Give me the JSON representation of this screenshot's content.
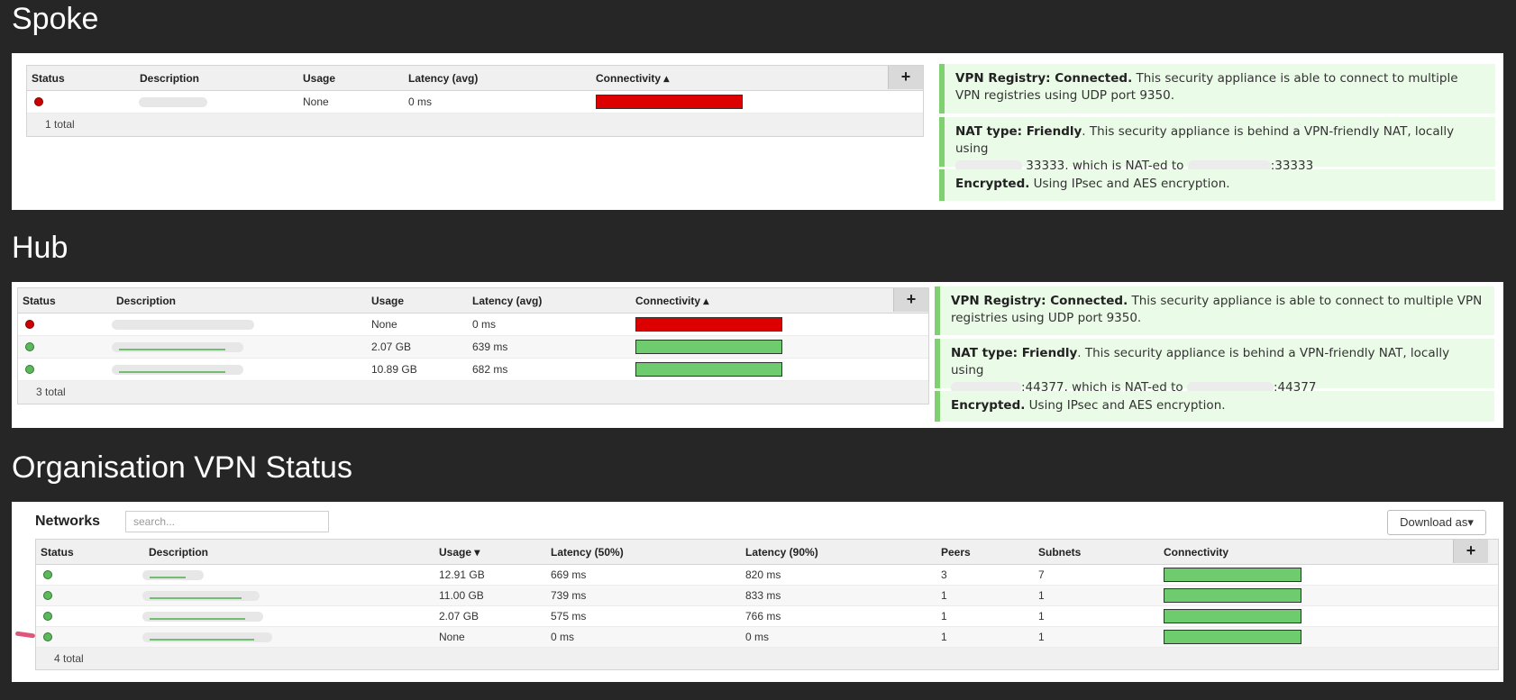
{
  "sections": {
    "spoke": "Spoke",
    "hub": "Hub",
    "org": "Organisation VPN Status"
  },
  "peer_columns": {
    "status": "Status",
    "description": "Description",
    "usage": "Usage",
    "latency": "Latency (avg)",
    "connectivity": "Connectivity ▴"
  },
  "spoke_table": {
    "rows": [
      {
        "status": "red",
        "usage": "None",
        "latency": "0 ms",
        "connectivity": "red"
      }
    ],
    "total": "1 total"
  },
  "hub_table": {
    "rows": [
      {
        "status": "red",
        "usage": "None",
        "latency": "0 ms",
        "connectivity": "red"
      },
      {
        "status": "green",
        "usage": "2.07 GB",
        "latency": "639 ms",
        "connectivity": "green"
      },
      {
        "status": "green",
        "usage": "10.89 GB",
        "latency": "682 ms",
        "connectivity": "green"
      }
    ],
    "total": "3 total"
  },
  "plus_label": "+",
  "spoke_messages": {
    "registry_title": "VPN Registry: Connected.",
    "registry_text": "This security appliance is able to connect to multiple VPN registries using UDP port 9350.",
    "nat_title": "NAT type: Friendly",
    "nat_text1": ". This security appliance is behind a VPN-friendly NAT, locally using",
    "nat_text2": "33333, which is NAT-ed to",
    "nat_text3": ":33333",
    "enc_title": "Encrypted.",
    "enc_text": "Using IPsec and AES encryption."
  },
  "hub_messages": {
    "registry_title": "VPN Registry: Connected.",
    "registry_text": "This security appliance is able to connect to multiple VPN registries using UDP port 9350.",
    "nat_title": "NAT type: Friendly",
    "nat_text1": ". This security appliance is behind a VPN-friendly NAT, locally using",
    "nat_text2": ":44377, which is NAT-ed to",
    "nat_text3": ":44377",
    "enc_title": "Encrypted.",
    "enc_text": "Using IPsec and AES encryption."
  },
  "networks": {
    "title": "Networks",
    "search_placeholder": "search...",
    "download_label": "Download as▾",
    "columns": {
      "status": "Status",
      "description": "Description",
      "usage": "Usage ▾",
      "lat50": "Latency (50%)",
      "lat90": "Latency (90%)",
      "peers": "Peers",
      "subnets": "Subnets",
      "connectivity": "Connectivity"
    },
    "rows": [
      {
        "status": "green",
        "usage": "12.91 GB",
        "lat50": "669 ms",
        "lat90": "820 ms",
        "peers": "3",
        "subnets": "7",
        "connectivity": "green"
      },
      {
        "status": "green",
        "usage": "11.00 GB",
        "lat50": "739 ms",
        "lat90": "833 ms",
        "peers": "1",
        "subnets": "1",
        "connectivity": "green"
      },
      {
        "status": "green",
        "usage": "2.07 GB",
        "lat50": "575 ms",
        "lat90": "766 ms",
        "peers": "1",
        "subnets": "1",
        "connectivity": "green"
      },
      {
        "status": "green",
        "usage": "None",
        "lat50": "0 ms",
        "lat90": "0 ms",
        "peers": "1",
        "subnets": "1",
        "connectivity": "green"
      }
    ],
    "total": "4 total"
  }
}
